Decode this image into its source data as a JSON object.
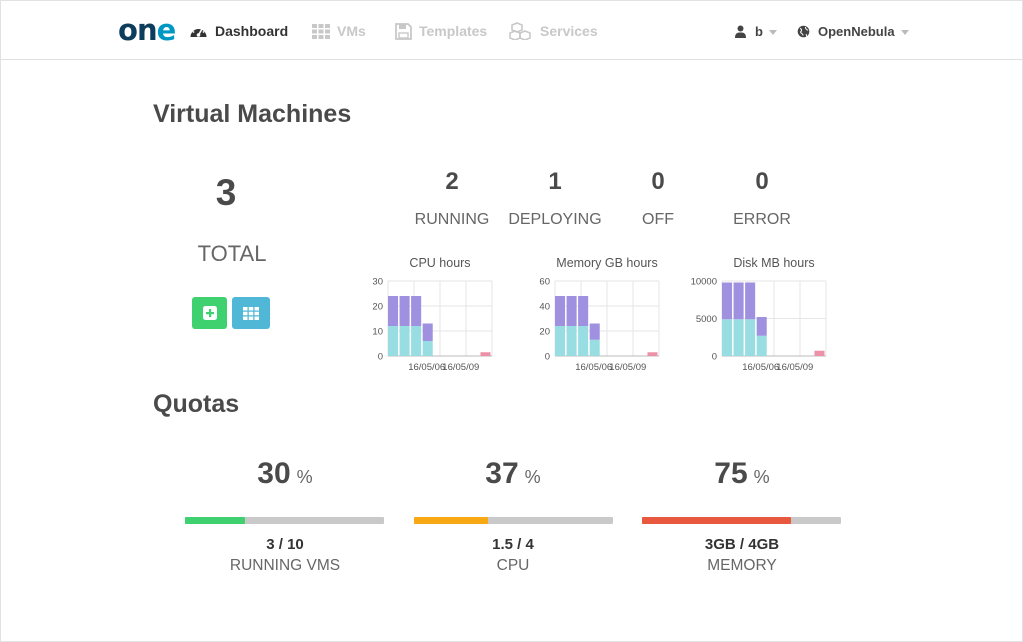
{
  "header": {
    "logo": {
      "o": "o",
      "n": "n",
      "e": "e"
    },
    "nav": [
      {
        "label": "Dashboard",
        "active": true
      },
      {
        "label": "VMs",
        "active": false
      },
      {
        "label": "Templates",
        "active": false
      },
      {
        "label": "Services",
        "active": false
      }
    ],
    "user": "b",
    "zone": "OpenNebula"
  },
  "vms": {
    "title": "Virtual Machines",
    "total_value": "3",
    "total_label": "TOTAL",
    "states": [
      {
        "value": "2",
        "label": "RUNNING"
      },
      {
        "value": "1",
        "label": "DEPLOYING"
      },
      {
        "value": "0",
        "label": "OFF"
      },
      {
        "value": "0",
        "label": "ERROR"
      }
    ]
  },
  "colors": {
    "accent_green": "#3fd16f",
    "accent_blue": "#50b8d6",
    "bar_top": "#9f90e0",
    "bar_bottom": "#98dde2",
    "bar_red": "#ee90a8",
    "quota_green": "#3fd16f",
    "quota_orange": "#f7a812",
    "quota_red": "#e8583f"
  },
  "chart_data": [
    {
      "type": "bar",
      "title": "CPU hours",
      "ylim": [
        0,
        30
      ],
      "yticks": [
        "0",
        "10",
        "20",
        "30"
      ],
      "xticks": [
        "16/05/06",
        "16/05/09"
      ],
      "series": [
        {
          "values": [
            12,
            12,
            12,
            6,
            0,
            0,
            0,
            0,
            1.5
          ]
        },
        {
          "values": [
            12,
            12,
            12,
            7,
            0,
            0,
            0,
            0,
            0
          ]
        }
      ]
    },
    {
      "type": "bar",
      "title": "Memory GB hours",
      "ylim": [
        0,
        60
      ],
      "yticks": [
        "0",
        "20",
        "40",
        "60"
      ],
      "xticks": [
        "16/05/06",
        "16/05/09"
      ],
      "series": [
        {
          "values": [
            24,
            24,
            24,
            13,
            0,
            0,
            0,
            0,
            3
          ]
        },
        {
          "values": [
            24,
            24,
            24,
            13,
            0,
            0,
            0,
            0,
            0
          ]
        }
      ]
    },
    {
      "type": "bar",
      "title": "Disk MB hours",
      "ylim": [
        0,
        10000
      ],
      "yticks": [
        "0",
        "5000",
        "10000"
      ],
      "xticks": [
        "16/05/06",
        "16/05/09"
      ],
      "series": [
        {
          "values": [
            4900,
            4900,
            4900,
            2700,
            0,
            0,
            0,
            0,
            700
          ]
        },
        {
          "values": [
            4900,
            4900,
            4900,
            2500,
            0,
            0,
            0,
            0,
            0
          ]
        }
      ]
    }
  ],
  "quotas": {
    "title": "Quotas",
    "items": [
      {
        "pct": "30",
        "unit": "%",
        "value": "3 / 10",
        "label": "RUNNING VMS",
        "fraction": 0.3
      },
      {
        "pct": "37",
        "unit": "%",
        "value": "1.5 / 4",
        "label": "CPU",
        "fraction": 0.37
      },
      {
        "pct": "75",
        "unit": "%",
        "value": "3GB / 4GB",
        "label": "MEMORY",
        "fraction": 0.75
      }
    ]
  }
}
